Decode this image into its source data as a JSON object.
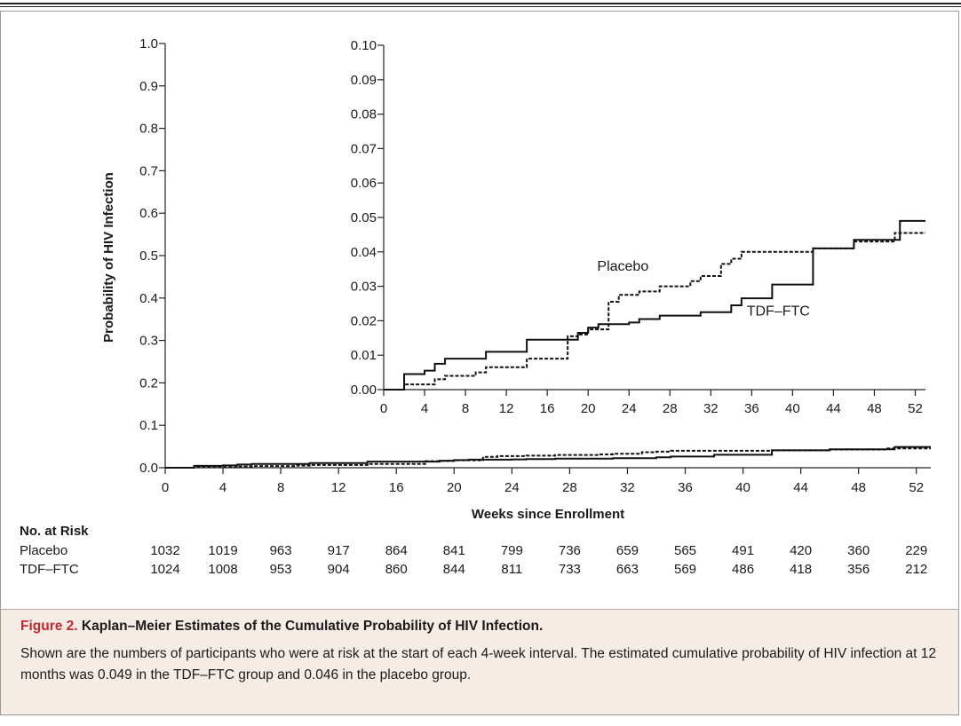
{
  "chart_data": [
    {
      "type": "line",
      "title": "",
      "xlabel": "Weeks since Enrollment",
      "ylabel": "Probability of HIV Infection",
      "xlim": [
        0,
        53
      ],
      "ylim": [
        0,
        1.0
      ],
      "xticks": [
        "0",
        "4",
        "8",
        "12",
        "16",
        "20",
        "24",
        "28",
        "32",
        "36",
        "40",
        "44",
        "48",
        "52"
      ],
      "yticks": [
        "0.0",
        "0.1",
        "0.2",
        "0.3",
        "0.4",
        "0.5",
        "0.6",
        "0.7",
        "0.8",
        "0.9",
        "1.0"
      ],
      "grid": false,
      "step": true,
      "series": [
        {
          "name": "TDF–FTC",
          "style": "solid",
          "x": [
            0,
            2,
            4,
            5,
            6,
            9,
            10,
            14,
            18,
            19,
            20,
            21,
            23,
            24,
            25,
            27,
            31,
            34,
            35,
            38,
            42,
            46,
            50.5,
            53
          ],
          "y": [
            0,
            0.0045,
            0.0055,
            0.0075,
            0.009,
            0.009,
            0.011,
            0.0145,
            0.0145,
            0.0165,
            0.018,
            0.019,
            0.019,
            0.0195,
            0.0205,
            0.0215,
            0.0225,
            0.0245,
            0.0265,
            0.0305,
            0.041,
            0.0435,
            0.049,
            0.049
          ]
        },
        {
          "name": "Placebo",
          "style": "dashed",
          "x": [
            0,
            2,
            5,
            6,
            9,
            10,
            14,
            18,
            19,
            20,
            22,
            23,
            25,
            27,
            30,
            31,
            33,
            34,
            35,
            42,
            46,
            50,
            51,
            53
          ],
          "y": [
            0,
            0.0015,
            0.003,
            0.004,
            0.005,
            0.0065,
            0.009,
            0.0155,
            0.016,
            0.0175,
            0.0255,
            0.0275,
            0.0285,
            0.03,
            0.0315,
            0.033,
            0.0365,
            0.038,
            0.04,
            0.041,
            0.043,
            0.0455,
            0.0455,
            0.0455
          ]
        }
      ]
    },
    {
      "type": "line",
      "title": "inset",
      "xlim": [
        0,
        53
      ],
      "ylim": [
        0,
        0.1
      ],
      "xticks": [
        "0",
        "4",
        "8",
        "12",
        "16",
        "20",
        "24",
        "28",
        "32",
        "36",
        "40",
        "44",
        "48",
        "52"
      ],
      "yticks": [
        "0.00",
        "0.01",
        "0.02",
        "0.03",
        "0.04",
        "0.05",
        "0.06",
        "0.07",
        "0.08",
        "0.09",
        "0.10"
      ],
      "series_labels": {
        "placebo": "Placebo",
        "tdf": "TDF–FTC"
      }
    }
  ],
  "risk_table": {
    "title": "No. at Risk",
    "rows": [
      {
        "label": "Placebo",
        "values": [
          "1032",
          "1019",
          "963",
          "917",
          "864",
          "841",
          "799",
          "736",
          "659",
          "565",
          "491",
          "420",
          "360",
          "229"
        ]
      },
      {
        "label": "TDF–FTC",
        "values": [
          "1024",
          "1008",
          "953",
          "904",
          "860",
          "844",
          "811",
          "733",
          "663",
          "569",
          "486",
          "418",
          "356",
          "212"
        ]
      }
    ]
  },
  "caption": {
    "figure_number": "Figure 2.",
    "title": "Kaplan–Meier Estimates of the Cumulative Probability of HIV Infection.",
    "body": "Shown are the numbers of participants who were at risk at the start of each 4-week interval. The estimated cumulative probability of HIV infection at 12 months was 0.049 in the TDF–FTC group and 0.046 in the placebo group."
  }
}
